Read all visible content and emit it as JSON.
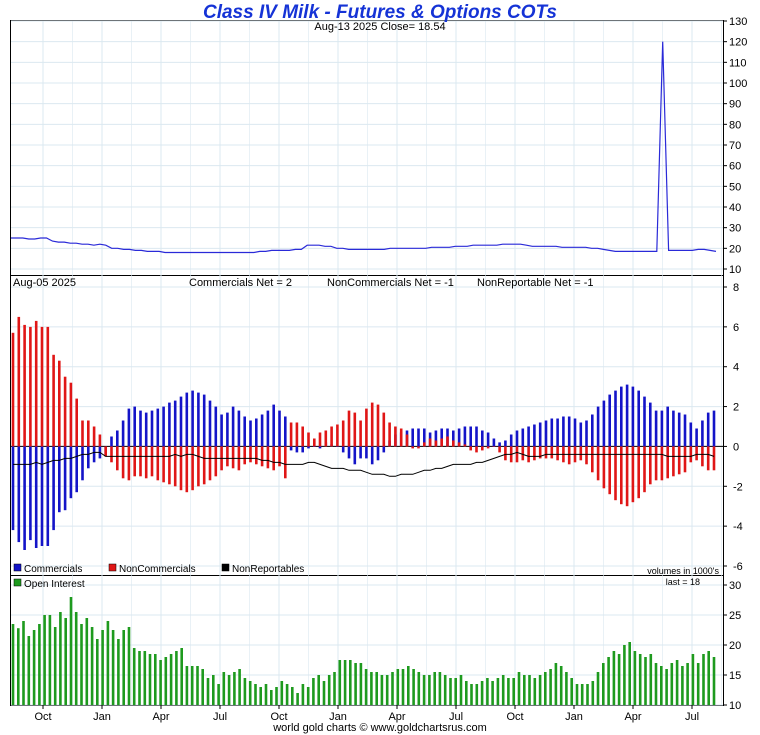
{
  "title": "Class IV Milk - Futures & Options COTs",
  "subtitle": "Aug-13  2025   Close= 18.54",
  "footer": "world gold charts © www.goldchartsrus.com",
  "colors": {
    "price_line": "#2a2ad8",
    "commercials": "#1414c8",
    "noncommercials": "#e01616",
    "nonreportables": "#000000",
    "open_interest": "#1e9a1e",
    "grid": "#dbe8f0",
    "title": "#1533d6"
  },
  "chart_data": [
    {
      "type": "line",
      "title": "Class IV Milk - Futures & Options COTs",
      "subtitle": "Aug-13  2025   Close= 18.54",
      "ylim": [
        10,
        130
      ],
      "yticks": [
        10,
        20,
        30,
        40,
        50,
        60,
        70,
        80,
        90,
        100,
        110,
        120,
        130
      ],
      "grid": true,
      "series": [
        {
          "values": [
            25,
            25,
            25,
            24.5,
            24.5,
            25,
            25,
            23.5,
            23,
            23,
            22.5,
            22.5,
            22,
            22,
            21.5,
            22,
            21.5,
            20,
            20,
            19.5,
            19.5,
            19,
            19,
            18.5,
            18.5,
            18.5,
            18,
            18,
            18,
            18,
            18,
            18,
            18,
            18,
            18,
            18,
            18,
            18,
            18,
            18,
            18,
            18,
            18.5,
            18.5,
            19,
            19,
            19,
            19,
            19.5,
            19.5,
            21.5,
            21.5,
            21.5,
            21,
            21,
            20,
            20,
            19.5,
            19.5,
            19.5,
            19.5,
            19.5,
            19.5,
            19.5,
            20,
            20,
            20,
            20,
            20,
            20,
            20,
            20.5,
            20.5,
            20.5,
            20.5,
            21,
            21,
            21,
            21.5,
            21.5,
            21.5,
            21.5,
            21.5,
            22,
            22,
            22,
            22,
            21.5,
            21,
            21,
            21,
            21,
            21,
            20.5,
            20.5,
            20.5,
            20.5,
            20.5,
            20,
            20,
            19.5,
            19,
            18.5,
            18.5,
            18.5,
            18.5,
            18.5,
            18.5,
            18.5,
            18.5,
            120,
            19,
            19,
            19,
            19,
            19,
            19.5,
            19.5,
            19,
            18.5
          ]
        }
      ]
    },
    {
      "type": "bar",
      "date_label": "Aug-05  2025",
      "header_labels": [
        "Commercials Net = 2",
        "NonCommercials Net = -1",
        "NonReportable Net = -1"
      ],
      "ylim": [
        -6,
        8
      ],
      "yticks": [
        -6,
        -4,
        -2,
        0,
        2,
        4,
        6,
        8
      ],
      "grid": true,
      "legend_position": "bottom-left",
      "note": "volumes in 1000's",
      "series": [
        {
          "name": "Commercials",
          "values": [
            -4.2,
            -4.8,
            -5.2,
            -4.7,
            -5.1,
            -5.0,
            -5.0,
            -4.2,
            -3.3,
            -3.2,
            -2.6,
            -2.3,
            -1.7,
            -1.1,
            -0.8,
            -0.6,
            -0.5,
            0.5,
            0.8,
            1.3,
            1.9,
            2.0,
            1.8,
            1.7,
            1.8,
            1.9,
            2.0,
            2.2,
            2.3,
            2.5,
            2.7,
            2.8,
            2.7,
            2.6,
            2.3,
            2.0,
            1.6,
            1.7,
            2.0,
            1.8,
            1.5,
            1.3,
            1.4,
            1.6,
            1.8,
            2.1,
            1.8,
            1.5,
            -0.2,
            -0.3,
            -0.3,
            -0.1,
            0.0,
            -0.1,
            0.2,
            0.1,
            0.0,
            -0.3,
            -0.6,
            -0.9,
            -0.6,
            -0.6,
            -0.9,
            -0.7,
            -0.3,
            0.3,
            0.6,
            0.7,
            0.8,
            0.9,
            0.9,
            0.9,
            0.7,
            0.8,
            0.9,
            0.9,
            0.8,
            0.9,
            1.0,
            1.0,
            1.0,
            0.8,
            0.7,
            0.4,
            0.2,
            0.3,
            0.6,
            0.8,
            0.9,
            1.0,
            1.1,
            1.2,
            1.3,
            1.4,
            1.4,
            1.5,
            1.5,
            1.4,
            1.2,
            1.3,
            1.6,
            2.0,
            2.3,
            2.6,
            2.8,
            3.0,
            3.1,
            3.0,
            2.8,
            2.5,
            2.2,
            1.8,
            1.8,
            2.0,
            1.8,
            1.7,
            1.6,
            1.2,
            0.9,
            1.3,
            1.7,
            1.8
          ]
        },
        {
          "name": "NonCommercials",
          "values": [
            5.7,
            6.5,
            6.1,
            6.0,
            6.3,
            6.0,
            6.0,
            4.6,
            4.3,
            3.5,
            3.2,
            2.4,
            1.3,
            1.3,
            1.0,
            0.6,
            -0.5,
            -0.8,
            -1.2,
            -1.6,
            -1.7,
            -1.5,
            -1.5,
            -1.6,
            -1.5,
            -1.7,
            -1.8,
            -1.9,
            -2.0,
            -2.2,
            -2.3,
            -2.2,
            -2.0,
            -1.9,
            -1.7,
            -1.5,
            -1.2,
            -1.0,
            -1.1,
            -1.2,
            -0.9,
            -0.8,
            -0.9,
            -1.0,
            -1.1,
            -1.2,
            -1.0,
            -1.6,
            1.2,
            1.2,
            1.0,
            0.7,
            0.4,
            0.7,
            0.8,
            1.0,
            1.1,
            1.3,
            1.8,
            1.7,
            1.3,
            1.9,
            2.2,
            2.1,
            1.7,
            1.2,
            1.0,
            0.9,
            0.6,
            -0.1,
            -0.1,
            0.2,
            0.4,
            0.3,
            0.4,
            0.5,
            0.3,
            0.2,
            0.1,
            -0.2,
            -0.3,
            -0.2,
            -0.1,
            0.0,
            -0.3,
            -0.7,
            -0.8,
            -0.8,
            -0.7,
            -0.8,
            -0.7,
            -0.6,
            -0.6,
            -0.6,
            -0.7,
            -0.8,
            -0.9,
            -0.8,
            -0.7,
            -0.9,
            -1.3,
            -1.7,
            -2.1,
            -2.4,
            -2.7,
            -2.9,
            -3.0,
            -2.8,
            -2.6,
            -2.3,
            -1.9,
            -1.7,
            -1.7,
            -1.6,
            -1.5,
            -1.4,
            -1.3,
            -0.8,
            -0.7,
            -1.0,
            -1.2,
            -1.2
          ]
        },
        {
          "name": "NonReportables",
          "values": [
            -0.9,
            -0.9,
            -0.9,
            -0.9,
            -0.8,
            -0.9,
            -0.8,
            -0.7,
            -0.7,
            -0.6,
            -0.6,
            -0.5,
            -0.4,
            -0.4,
            -0.3,
            -0.3,
            -0.5,
            -0.5,
            -0.5,
            -0.5,
            -0.5,
            -0.5,
            -0.5,
            -0.5,
            -0.5,
            -0.5,
            -0.5,
            -0.5,
            -0.4,
            -0.5,
            -0.4,
            -0.4,
            -0.5,
            -0.6,
            -0.6,
            -0.6,
            -0.6,
            -0.6,
            -0.6,
            -0.6,
            -0.6,
            -0.6,
            -0.6,
            -0.7,
            -0.7,
            -0.8,
            -0.8,
            -0.9,
            -0.9,
            -0.9,
            -0.9,
            -0.8,
            -0.8,
            -0.9,
            -1.0,
            -1.1,
            -1.1,
            -1.1,
            -1.2,
            -1.2,
            -1.2,
            -1.3,
            -1.4,
            -1.4,
            -1.4,
            -1.5,
            -1.5,
            -1.4,
            -1.4,
            -1.4,
            -1.3,
            -1.2,
            -1.2,
            -1.1,
            -1.1,
            -1.0,
            -0.9,
            -0.9,
            -0.9,
            -0.9,
            -0.8,
            -0.8,
            -0.7,
            -0.6,
            -0.5,
            -0.4,
            -0.4,
            -0.3,
            -0.4,
            -0.5,
            -0.5,
            -0.5,
            -0.4,
            -0.4,
            -0.4,
            -0.4,
            -0.4,
            -0.4,
            -0.4,
            -0.4,
            -0.4,
            -0.4,
            -0.4,
            -0.4,
            -0.4,
            -0.4,
            -0.4,
            -0.4,
            -0.4,
            -0.4,
            -0.4,
            -0.4,
            -0.4,
            -0.5,
            -0.5,
            -0.5,
            -0.5,
            -0.5,
            -0.4,
            -0.4,
            -0.4,
            -0.5
          ]
        }
      ]
    },
    {
      "type": "bar",
      "legend": [
        "Open Interest"
      ],
      "note": "last = 18",
      "ylim": [
        10,
        32
      ],
      "yticks": [
        10,
        15,
        20,
        25,
        30
      ],
      "xticks": [
        "Oct",
        "Jan",
        "Apr",
        "Jul",
        "Oct",
        "Jan",
        "Apr",
        "Jul",
        "Oct",
        "Jan",
        "Apr",
        "Jul"
      ],
      "grid": true,
      "series": [
        {
          "name": "Open Interest",
          "values": [
            23.5,
            22.8,
            24.0,
            21.5,
            22.5,
            23.5,
            25.0,
            25.0,
            23.0,
            25.5,
            24.5,
            28.0,
            25.5,
            23.5,
            24.5,
            23.0,
            21.0,
            22.5,
            24.0,
            22.5,
            21.0,
            22.5,
            23.0,
            19.5,
            19.0,
            19.0,
            18.5,
            18.5,
            17.5,
            18.0,
            18.5,
            19.0,
            19.5,
            16.5,
            16.5,
            16.5,
            16.0,
            14.5,
            15.0,
            13.5,
            15.5,
            15.0,
            15.5,
            16.0,
            14.5,
            14.0,
            13.5,
            13.0,
            13.5,
            12.5,
            13.0,
            14.0,
            13.5,
            13.0,
            12.0,
            13.5,
            13.0,
            14.5,
            15.0,
            14.0,
            15.0,
            15.5,
            17.5,
            17.5,
            17.5,
            17.0,
            17.0,
            16.0,
            15.5,
            15.5,
            15.0,
            15.0,
            15.5,
            16.0,
            16.0,
            16.5,
            16.0,
            15.5,
            15.0,
            15.0,
            15.5,
            15.5,
            15.0,
            14.5,
            14.5,
            15.0,
            14.0,
            13.5,
            13.5,
            14.0,
            14.5,
            14.0,
            14.5,
            15.0,
            14.5,
            14.5,
            15.5,
            15.0,
            15.0,
            14.5,
            15.0,
            15.5,
            16.0,
            17.0,
            16.5,
            15.5,
            14.5,
            13.5,
            13.5,
            13.5,
            14.0,
            15.5,
            17.0,
            18.0,
            19.0,
            18.5,
            20.0,
            20.5,
            19.0,
            18.5,
            18.0,
            18.5,
            17.0,
            16.5,
            16.0,
            17.0,
            17.5,
            16.5,
            17.0,
            18.5,
            17.0,
            18.5,
            19.0,
            18.0
          ]
        }
      ]
    }
  ]
}
